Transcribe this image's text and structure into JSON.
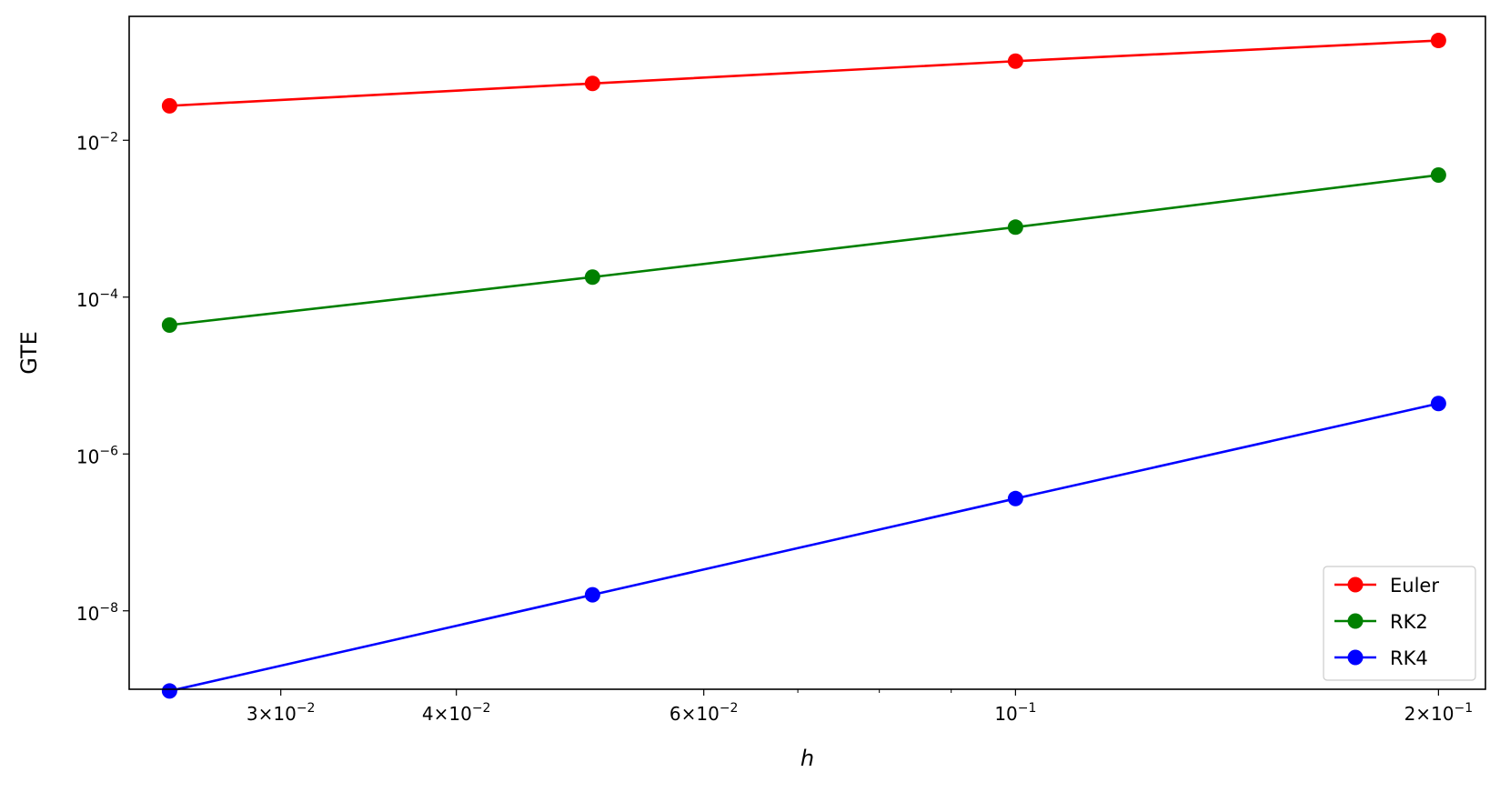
{
  "chart_data": {
    "type": "line",
    "title": "",
    "xlabel": "h",
    "ylabel": "GTE",
    "xscale": "log",
    "yscale": "log",
    "xlim": [
      0.0234,
      0.216
    ],
    "ylim": [
      1e-09,
      0.38
    ],
    "grid": false,
    "legend_position": "bottom-right",
    "x": [
      0.025,
      0.05,
      0.1,
      0.2
    ],
    "series": [
      {
        "name": "Euler",
        "color": "#ff0000",
        "values": [
          0.0275,
          0.053,
          0.102,
          0.187
        ]
      },
      {
        "name": "RK2",
        "color": "#008000",
        "values": [
          4.4e-05,
          0.00018,
          0.00078,
          0.0036
        ]
      },
      {
        "name": "RK4",
        "color": "#0000ff",
        "values": [
          9.5e-10,
          1.6e-08,
          2.7e-07,
          4.4e-06
        ]
      }
    ],
    "x_ticks": [
      {
        "value": 0.03,
        "mantissa": "3",
        "times": "×",
        "base": "10",
        "exp": "−2"
      },
      {
        "value": 0.04,
        "mantissa": "4",
        "times": "×",
        "base": "10",
        "exp": "−2"
      },
      {
        "value": 0.06,
        "mantissa": "6",
        "times": "×",
        "base": "10",
        "exp": "−2"
      },
      {
        "value": 0.1,
        "mantissa": "",
        "times": "",
        "base": "10",
        "exp": "−1"
      },
      {
        "value": 0.2,
        "mantissa": "2",
        "times": "×",
        "base": "10",
        "exp": "−1"
      }
    ],
    "x_minor_ticks": [
      0.07,
      0.08,
      0.09
    ],
    "y_ticks": [
      {
        "value": 0.01,
        "base": "10",
        "exp": "−2"
      },
      {
        "value": 0.0001,
        "base": "10",
        "exp": "−4"
      },
      {
        "value": 1e-06,
        "base": "10",
        "exp": "−6"
      },
      {
        "value": 1e-08,
        "base": "10",
        "exp": "−8"
      }
    ]
  }
}
